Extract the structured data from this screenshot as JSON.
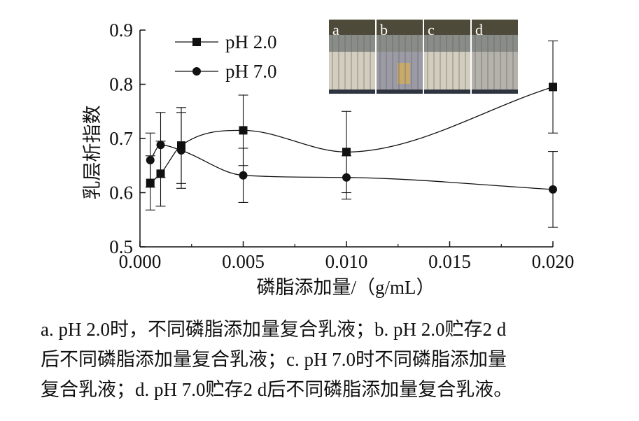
{
  "chart_data": {
    "type": "line",
    "ylabel": "乳层析指数",
    "xlabel": "磷脂添加量/（g/mL）",
    "xlim": [
      0.0,
      0.02
    ],
    "ylim": [
      0.5,
      0.9
    ],
    "x_ticks": [
      "0.000",
      "0.005",
      "0.010",
      "0.015",
      "0.020"
    ],
    "y_ticks": [
      "0.5",
      "0.6",
      "0.7",
      "0.8",
      "0.9"
    ],
    "legend_position": "top-left",
    "series": [
      {
        "name": "pH 2.0",
        "marker": "square",
        "points": [
          {
            "x": 0.0005,
            "y": 0.618,
            "err": 0.05
          },
          {
            "x": 0.001,
            "y": 0.635,
            "err": 0.06
          },
          {
            "x": 0.002,
            "y": 0.687,
            "err": 0.07
          },
          {
            "x": 0.005,
            "y": 0.715,
            "err": 0.065
          },
          {
            "x": 0.01,
            "y": 0.675,
            "err": 0.075
          },
          {
            "x": 0.02,
            "y": 0.795,
            "err": 0.085
          }
        ]
      },
      {
        "name": "pH 7.0",
        "marker": "circle",
        "points": [
          {
            "x": 0.0005,
            "y": 0.66,
            "err": 0.05
          },
          {
            "x": 0.001,
            "y": 0.688,
            "err": 0.06
          },
          {
            "x": 0.002,
            "y": 0.678,
            "err": 0.07
          },
          {
            "x": 0.005,
            "y": 0.632,
            "err": 0.05
          },
          {
            "x": 0.01,
            "y": 0.628,
            "err": 0.04
          },
          {
            "x": 0.02,
            "y": 0.606,
            "err": 0.07
          }
        ]
      }
    ]
  },
  "inset_photos": [
    "a",
    "b",
    "c",
    "d"
  ],
  "caption": {
    "lines": [
      "a. pH 2.0时，不同磷脂添加量复合乳液；b. pH 2.0贮存2 d",
      "后不同磷脂添加量复合乳液；c. pH 7.0时不同磷脂添加量",
      "复合乳液；d. pH 7.0贮存2 d后不同磷脂添加量复合乳液。"
    ]
  }
}
